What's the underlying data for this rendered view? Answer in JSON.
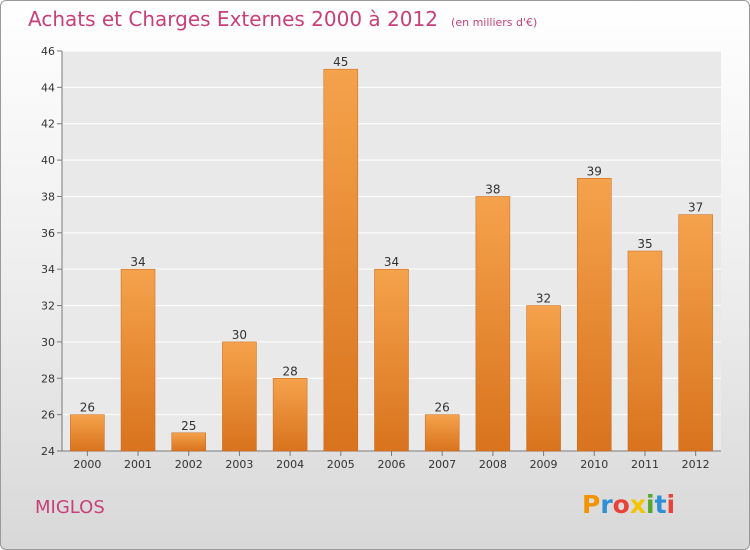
{
  "title": "Achats et Charges Externes 2000 à 2012",
  "unit_note": "(en milliers d'€)",
  "commune": "MIGLOS",
  "logo": {
    "letters": [
      "P",
      "r",
      "o",
      "x",
      "i",
      "t",
      "i"
    ],
    "colors": [
      "#f29400",
      "#2e8fd6",
      "#e8433b",
      "#f2c500",
      "#55a630",
      "#2e8fd6",
      "#e8433b"
    ]
  },
  "colors": {
    "bar_light": "#f5a24c",
    "bar_dark": "#d9731d",
    "title": "#c8407a",
    "axis": "#7a7a7a",
    "grid": "#ffffff"
  },
  "chart_data": {
    "type": "bar",
    "categories": [
      "2000",
      "2001",
      "2002",
      "2003",
      "2004",
      "2005",
      "2006",
      "2007",
      "2008",
      "2009",
      "2010",
      "2011",
      "2012"
    ],
    "values": [
      26,
      34,
      25,
      30,
      28,
      45,
      34,
      26,
      38,
      32,
      39,
      35,
      37
    ],
    "title": "Achats et Charges Externes 2000 à 2012",
    "xlabel": "",
    "ylabel": "",
    "ylim": [
      24,
      46
    ],
    "yticks": [
      24,
      26,
      28,
      30,
      32,
      34,
      36,
      38,
      40,
      42,
      44,
      46
    ],
    "grid": true,
    "legend": "none"
  }
}
